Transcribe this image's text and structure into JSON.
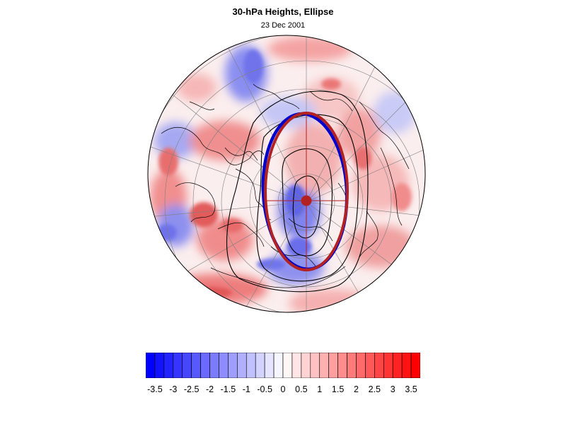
{
  "title": "30-hPa Heights, Ellipse",
  "subtitle": "23 Dec 2001",
  "colorbar": {
    "labels": [
      "-3.5",
      "-3",
      "-2.5",
      "-2",
      "-1.5",
      "-1",
      "-0.5",
      "0",
      "0.5",
      "1",
      "1.5",
      "2",
      "2.5",
      "3",
      "3.5"
    ],
    "min": -3.75,
    "max": 3.75,
    "step": 0.25,
    "negative_color": "#0000ff",
    "positive_color": "#ff0000"
  },
  "colors": {
    "ellipse_observed": "#b22222",
    "ellipse_alt": "#0000cc",
    "center_marker": "#b22222",
    "contours": "#000000",
    "coastline": "#000000"
  }
}
